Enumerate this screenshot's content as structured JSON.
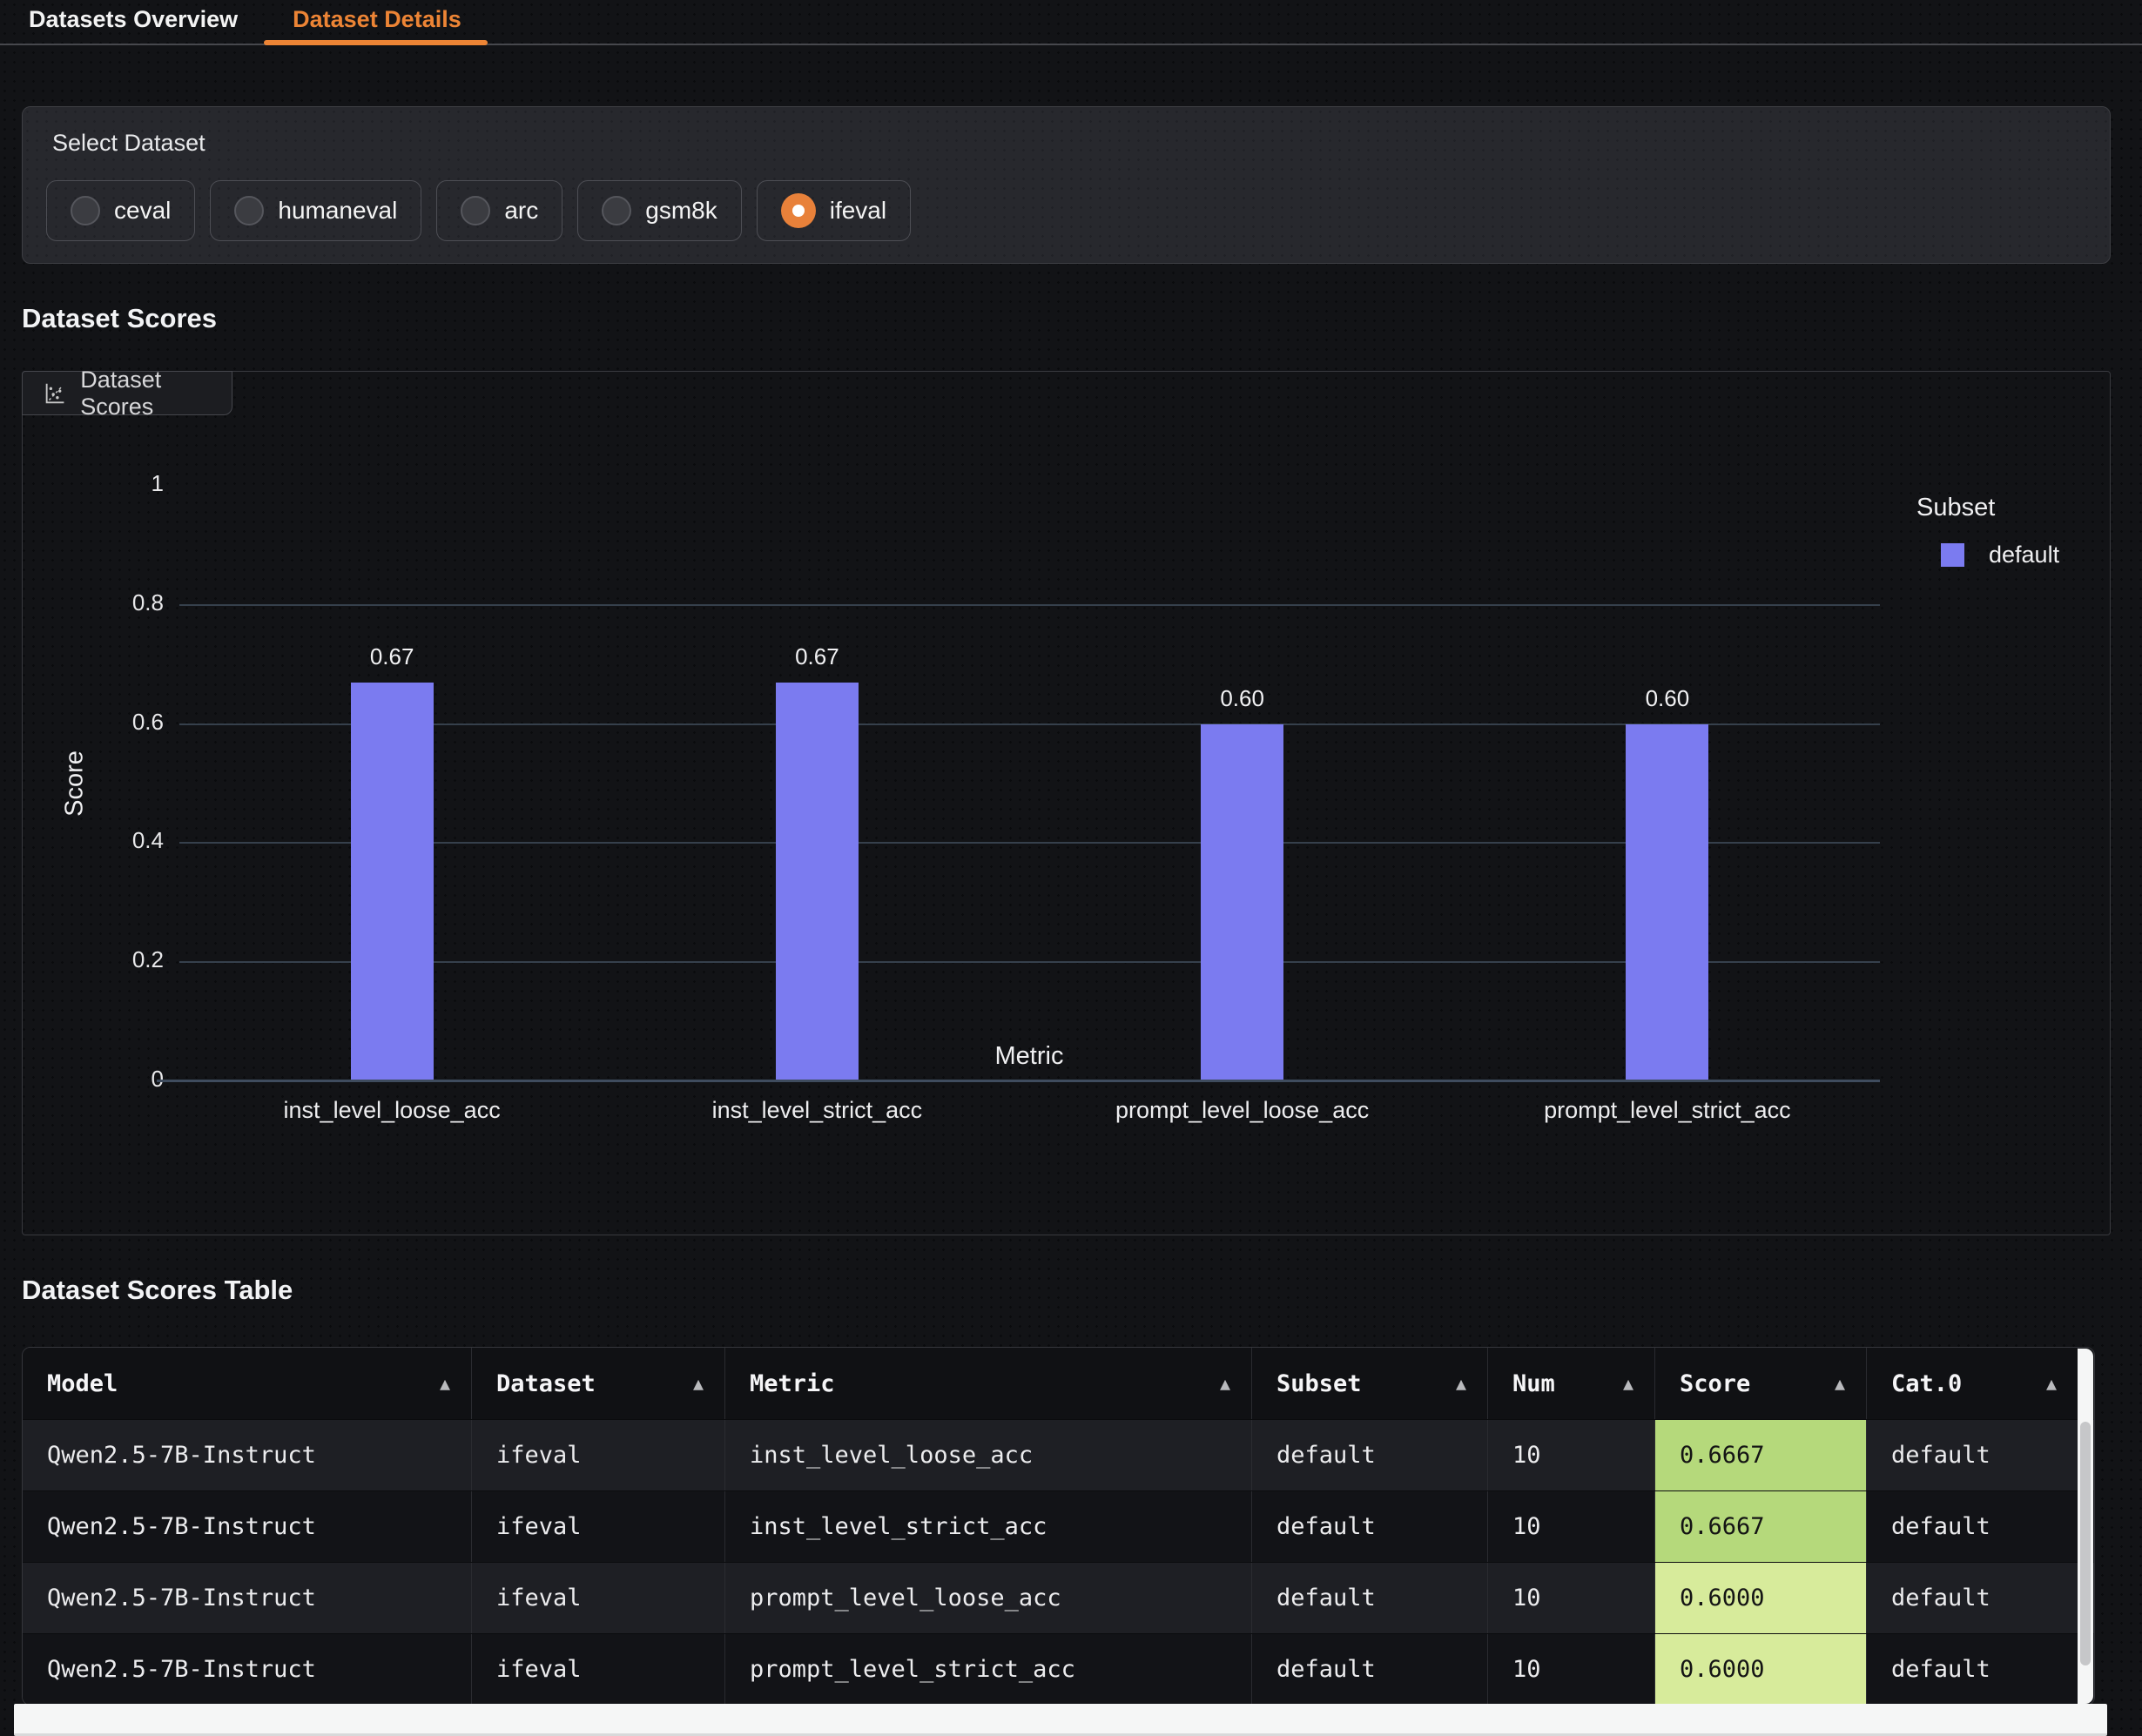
{
  "header_tabs": [
    {
      "label": "Datasets Overview",
      "active": false
    },
    {
      "label": "Dataset Details",
      "active": true
    }
  ],
  "select_dataset": {
    "label": "Select Dataset",
    "options": [
      {
        "label": "ceval",
        "selected": false
      },
      {
        "label": "humaneval",
        "selected": false
      },
      {
        "label": "arc",
        "selected": false
      },
      {
        "label": "gsm8k",
        "selected": false
      },
      {
        "label": "ifeval",
        "selected": true
      }
    ]
  },
  "scores_section": {
    "heading": "Dataset Scores",
    "panel_tab_label": "Dataset Scores"
  },
  "chart_data": {
    "type": "bar",
    "title": "Dataset Scores",
    "categories": [
      "inst_level_loose_acc",
      "inst_level_strict_acc",
      "prompt_level_loose_acc",
      "prompt_level_strict_acc"
    ],
    "series": [
      {
        "name": "default",
        "color": "#7b7bf0",
        "values": [
          0.67,
          0.67,
          0.6,
          0.6
        ]
      }
    ],
    "value_labels": [
      "0.67",
      "0.67",
      "0.60",
      "0.60"
    ],
    "xlabel": "Metric",
    "ylabel": "Score",
    "ylim": [
      0,
      1
    ],
    "yticks": [
      {
        "value": 1,
        "label": "1"
      },
      {
        "value": 0.8,
        "label": "0.8"
      },
      {
        "value": 0.6,
        "label": "0.6"
      },
      {
        "value": 0.4,
        "label": "0.4"
      },
      {
        "value": 0.2,
        "label": "0.2"
      },
      {
        "value": 0,
        "label": "0"
      }
    ],
    "grid": true,
    "legend": {
      "title": "Subset",
      "position": "right",
      "entries": [
        {
          "label": "default",
          "color": "#7b7bf0"
        }
      ]
    }
  },
  "table_section": {
    "heading": "Dataset Scores Table",
    "columns": [
      {
        "label": "Model",
        "sortable": true
      },
      {
        "label": "Dataset",
        "sortable": true
      },
      {
        "label": "Metric",
        "sortable": true
      },
      {
        "label": "Subset",
        "sortable": true
      },
      {
        "label": "Num",
        "sortable": true
      },
      {
        "label": "Score",
        "sortable": true
      },
      {
        "label": "Cat.0",
        "sortable": true
      }
    ],
    "rows": [
      {
        "cells": [
          "Qwen2.5-7B-Instruct",
          "ifeval",
          "inst_level_loose_acc",
          "default",
          "10",
          "0.6667",
          "default"
        ],
        "score_bg": "#b5d97b"
      },
      {
        "cells": [
          "Qwen2.5-7B-Instruct",
          "ifeval",
          "inst_level_strict_acc",
          "default",
          "10",
          "0.6667",
          "default"
        ],
        "score_bg": "#b5d97b"
      },
      {
        "cells": [
          "Qwen2.5-7B-Instruct",
          "ifeval",
          "prompt_level_loose_acc",
          "default",
          "10",
          "0.6000",
          "default"
        ],
        "score_bg": "#d7eb9b"
      },
      {
        "cells": [
          "Qwen2.5-7B-Instruct",
          "ifeval",
          "prompt_level_strict_acc",
          "default",
          "10",
          "0.6000",
          "default"
        ],
        "score_bg": "#d7eb9b"
      }
    ]
  },
  "colors": {
    "accent_orange": "#ec8435",
    "radio_selected": "#e8813a",
    "bar_purple": "#7b7bf0",
    "score_green_high": "#b5d97b",
    "score_green_mid": "#d7eb9b"
  },
  "sort_icon": "▲"
}
